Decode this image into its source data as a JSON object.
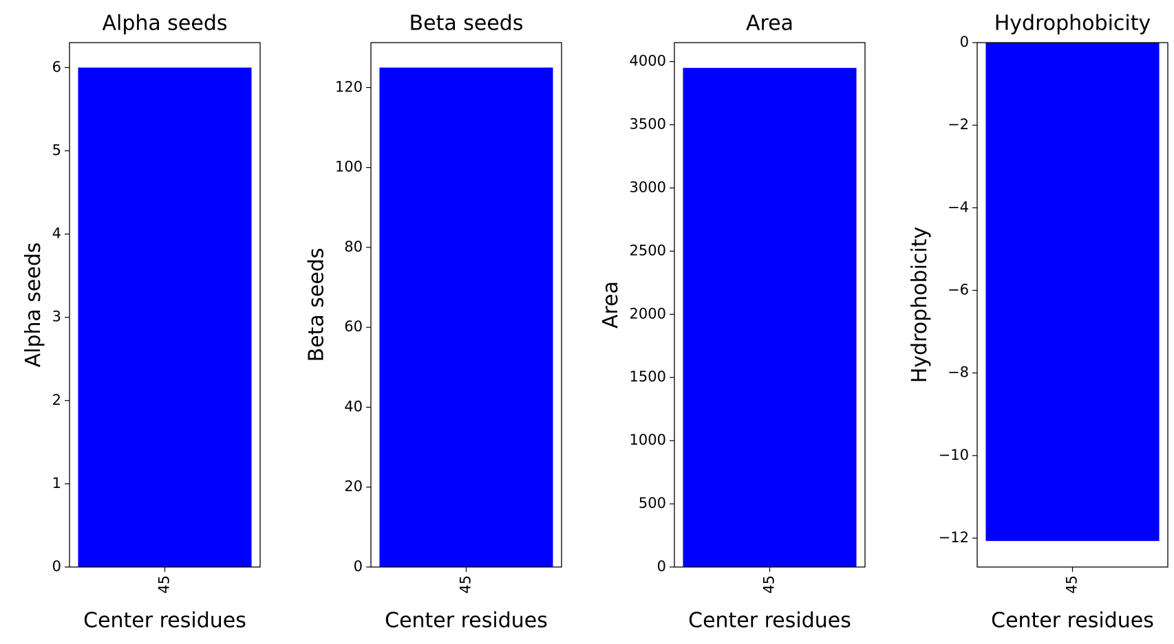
{
  "chart_data": [
    {
      "type": "bar",
      "title": "Alpha seeds",
      "xlabel": "Center residues",
      "ylabel": "Alpha seeds",
      "categories": [
        "45"
      ],
      "values": [
        6
      ],
      "color": "#0000ff",
      "ylim": [
        0,
        6.3
      ],
      "yticks": [
        0,
        1,
        2,
        3,
        4,
        5,
        6
      ]
    },
    {
      "type": "bar",
      "title": "Beta seeds",
      "xlabel": "Center residues",
      "ylabel": "Beta seeds",
      "categories": [
        "45"
      ],
      "values": [
        125
      ],
      "color": "#0000ff",
      "ylim": [
        0,
        131.25
      ],
      "yticks": [
        0,
        20,
        40,
        60,
        80,
        100,
        120
      ]
    },
    {
      "type": "bar",
      "title": "Area",
      "xlabel": "Center residues",
      "ylabel": "Area",
      "categories": [
        "45"
      ],
      "values": [
        3950
      ],
      "color": "#0000ff",
      "ylim": [
        0,
        4150
      ],
      "yticks": [
        0,
        500,
        1000,
        1500,
        2000,
        2500,
        3000,
        3500,
        4000
      ]
    },
    {
      "type": "bar",
      "title": "Hydrophobicity",
      "xlabel": "Center residues",
      "ylabel": "Hydrophobicity",
      "categories": [
        "45"
      ],
      "values": [
        -12.07
      ],
      "color": "#0000ff",
      "ylim": [
        -12.7,
        0
      ],
      "yticks": [
        {
          "value": -12,
          "label": "−12"
        },
        {
          "value": -10,
          "label": "−10"
        },
        {
          "value": -8,
          "label": "−8"
        },
        {
          "value": -6,
          "label": "−6"
        },
        {
          "value": -4,
          "label": "−4"
        },
        {
          "value": -2,
          "label": "−2"
        },
        0
      ]
    }
  ]
}
